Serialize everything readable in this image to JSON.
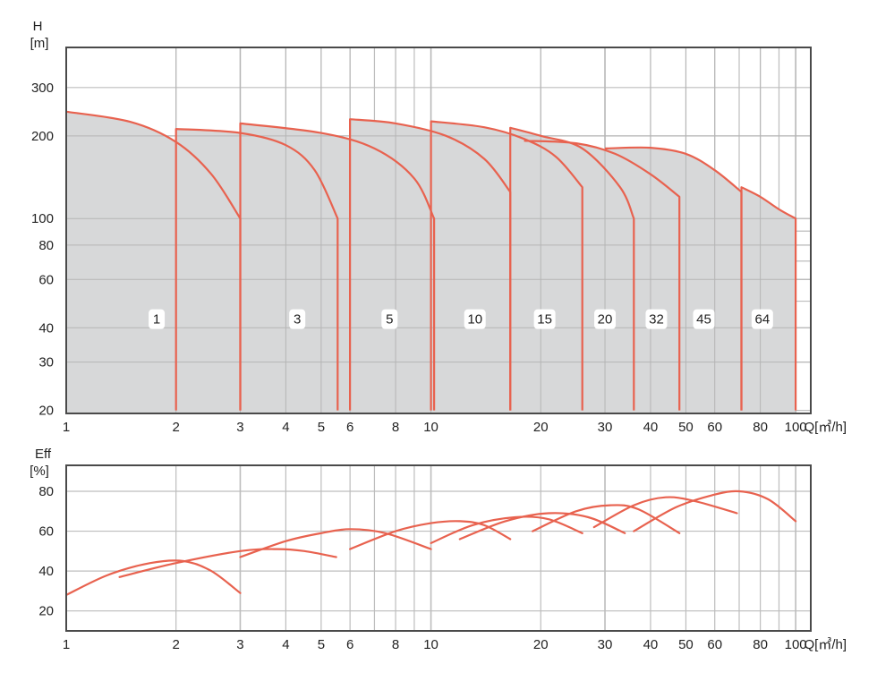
{
  "chart_data": [
    {
      "type": "area",
      "xscale": "log",
      "yscale": "log",
      "xlabel": "Q[㎥/h]",
      "ylabel": "H",
      "ylabel_unit": "[m]",
      "xlim": [
        1,
        110
      ],
      "ylim": [
        19.5,
        420
      ],
      "x_ticks": [
        1,
        2,
        3,
        4,
        5,
        6,
        8,
        10,
        20,
        30,
        40,
        50,
        60,
        80,
        100
      ],
      "y_ticks": [
        20,
        30,
        40,
        60,
        80,
        100,
        200,
        300
      ],
      "grid": true,
      "colors": {
        "curve": "#e8624f",
        "fill": "#d7d8d9",
        "grid": "#bdbdbd",
        "frame": "#4a4a4a"
      },
      "series": [
        {
          "name": "1",
          "label_pos": [
            1.77,
            43
          ],
          "points": [
            [
              1,
              245
            ],
            [
              1.5,
              225
            ],
            [
              2,
              190
            ],
            [
              2.5,
              145
            ],
            [
              3,
              100
            ],
            [
              3,
              20
            ]
          ]
        },
        {
          "name": "3",
          "label_pos": [
            4.3,
            43
          ],
          "points": [
            [
              2,
              20
            ],
            [
              2,
              212
            ],
            [
              3,
              205
            ],
            [
              4,
              185
            ],
            [
              4.8,
              150
            ],
            [
              5.55,
              100
            ],
            [
              5.55,
              20
            ]
          ]
        },
        {
          "name": "5",
          "label_pos": [
            7.7,
            43
          ],
          "points": [
            [
              3,
              20
            ],
            [
              3,
              222
            ],
            [
              5,
              205
            ],
            [
              7,
              180
            ],
            [
              9,
              140
            ],
            [
              10.2,
              100
            ],
            [
              10.2,
              20
            ]
          ]
        },
        {
          "name": "10",
          "label_pos": [
            13.2,
            43
          ],
          "points": [
            [
              6,
              20
            ],
            [
              6,
              230
            ],
            [
              8,
              222
            ],
            [
              11,
              200
            ],
            [
              14,
              165
            ],
            [
              16.5,
              125
            ],
            [
              16.5,
              20
            ]
          ]
        },
        {
          "name": "15",
          "label_pos": [
            20.5,
            43
          ],
          "points": [
            [
              10,
              20
            ],
            [
              10,
              226
            ],
            [
              14,
              215
            ],
            [
              18,
              195
            ],
            [
              22,
              168
            ],
            [
              26,
              130
            ],
            [
              26,
              20
            ]
          ]
        },
        {
          "name": "20",
          "label_pos": [
            30,
            43
          ],
          "points": [
            [
              16.5,
              20
            ],
            [
              16.5,
              214
            ],
            [
              20,
              200
            ],
            [
              26,
              180
            ],
            [
              33,
              130
            ],
            [
              36,
              100
            ],
            [
              36,
              20
            ]
          ]
        },
        {
          "name": "32",
          "label_pos": [
            41.5,
            43
          ],
          "points": [
            [
              18,
              192
            ],
            [
              25,
              188
            ],
            [
              32,
              172
            ],
            [
              40,
              145
            ],
            [
              48,
              120
            ],
            [
              48,
              20
            ]
          ]
        },
        {
          "name": "45",
          "label_pos": [
            56,
            43
          ],
          "points": [
            [
              30,
              180
            ],
            [
              40,
              181
            ],
            [
              50,
              172
            ],
            [
              60,
              150
            ],
            [
              71,
              125
            ],
            [
              71,
              20
            ]
          ]
        },
        {
          "name": "64",
          "label_pos": [
            81,
            43
          ],
          "points": [
            [
              71,
              20
            ],
            [
              71,
              130
            ],
            [
              80,
              120
            ],
            [
              90,
              108
            ],
            [
              100,
              100
            ],
            [
              100,
              20
            ]
          ]
        }
      ]
    },
    {
      "type": "line",
      "xscale": "log",
      "xlabel": "Q[㎥/h]",
      "ylabel": "Eff",
      "ylabel_unit": "[%]",
      "xlim": [
        1,
        110
      ],
      "ylim": [
        10,
        93
      ],
      "x_ticks": [
        1,
        2,
        3,
        4,
        5,
        6,
        8,
        10,
        20,
        30,
        40,
        50,
        60,
        80,
        100
      ],
      "y_ticks": [
        20,
        40,
        60,
        80
      ],
      "grid": true,
      "series": [
        {
          "name": "1",
          "points": [
            [
              1,
              28
            ],
            [
              1.3,
              38
            ],
            [
              1.7,
              44
            ],
            [
              2.1,
              45
            ],
            [
              2.5,
              40
            ],
            [
              3,
              29
            ]
          ]
        },
        {
          "name": "3",
          "points": [
            [
              1.4,
              37
            ],
            [
              2,
              44
            ],
            [
              3,
              50
            ],
            [
              3.8,
              51
            ],
            [
              4.5,
              50
            ],
            [
              5.5,
              47
            ]
          ]
        },
        {
          "name": "5",
          "points": [
            [
              3,
              47
            ],
            [
              4,
              55
            ],
            [
              5,
              59
            ],
            [
              6,
              61
            ],
            [
              7.5,
              59
            ],
            [
              10,
              51
            ]
          ]
        },
        {
          "name": "10",
          "points": [
            [
              6,
              51
            ],
            [
              8,
              60
            ],
            [
              10,
              64
            ],
            [
              12,
              65
            ],
            [
              14,
              63
            ],
            [
              16.5,
              56
            ]
          ]
        },
        {
          "name": "15",
          "points": [
            [
              10,
              54
            ],
            [
              13,
              63
            ],
            [
              17,
              67
            ],
            [
              21,
              66
            ],
            [
              26,
              59
            ]
          ]
        },
        {
          "name": "20",
          "points": [
            [
              12,
              56
            ],
            [
              16,
              65
            ],
            [
              21,
              69
            ],
            [
              27,
              67
            ],
            [
              34,
              59
            ]
          ]
        },
        {
          "name": "32",
          "points": [
            [
              19,
              60
            ],
            [
              25,
              70
            ],
            [
              31,
              73
            ],
            [
              37,
              71
            ],
            [
              48,
              59
            ]
          ]
        },
        {
          "name": "45",
          "points": [
            [
              28,
              62
            ],
            [
              36,
              73
            ],
            [
              44,
              77
            ],
            [
              53,
              75
            ],
            [
              69,
              69
            ]
          ]
        },
        {
          "name": "64",
          "points": [
            [
              36,
              60
            ],
            [
              47,
              72
            ],
            [
              59,
              78
            ],
            [
              70,
              80
            ],
            [
              84,
              76
            ],
            [
              100,
              65
            ]
          ]
        }
      ]
    }
  ]
}
